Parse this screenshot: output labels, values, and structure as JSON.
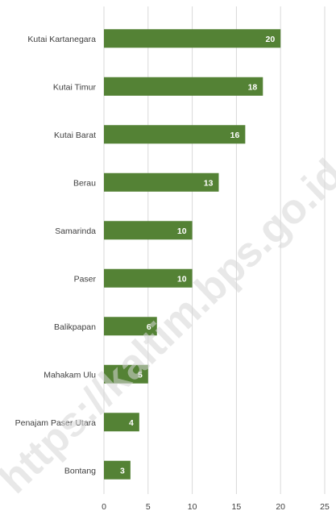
{
  "chart_data": {
    "type": "bar",
    "orientation": "horizontal",
    "categories": [
      "Kutai Kartanegara",
      "Kutai Timur",
      "Kutai Barat",
      "Berau",
      "Samarinda",
      "Paser",
      "Balikpapan",
      "Mahakam Ulu",
      "Penajam Paser Utara",
      "Bontang"
    ],
    "values": [
      20,
      18,
      16,
      13,
      10,
      10,
      6,
      5,
      4,
      3
    ],
    "xlim": [
      0,
      25
    ],
    "x_ticks": [
      0,
      5,
      10,
      15,
      20,
      25
    ],
    "grid": true,
    "bar_color": "#548235",
    "data_label_color": "#ffffff"
  },
  "watermark": "https://kaltim.bps.go.id"
}
